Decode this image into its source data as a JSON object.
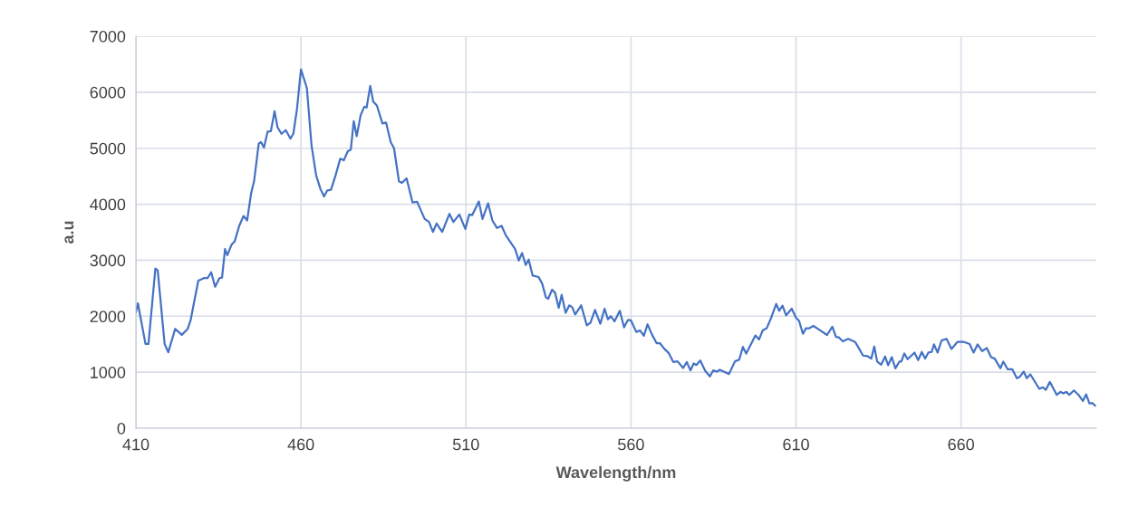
{
  "chart_data": {
    "type": "line",
    "xlabel": "Wavelength/nm",
    "ylabel": "a.u",
    "x": [
      410,
      410.6,
      412.9,
      413.8,
      415.9,
      416.6,
      418.7,
      419.8,
      421.9,
      423.9,
      425.7,
      426.6,
      428.9,
      430.6,
      431.7,
      432.8,
      434.0,
      435.3,
      436.1,
      437.0,
      437.7,
      439.0,
      439.9,
      441.3,
      442.6,
      443.7,
      444.9,
      445.8,
      447.2,
      447.9,
      448.8,
      449.9,
      450.9,
      452.0,
      452.9,
      454.1,
      455.4,
      456.8,
      457.7,
      458.8,
      460.0,
      461.8,
      463.2,
      464.6,
      465.9,
      467.0,
      468.0,
      469.1,
      470.5,
      471.9,
      473.0,
      474.2,
      475.1,
      476.0,
      476.9,
      478.1,
      479.2,
      479.9,
      481.0,
      481.9,
      483.0,
      484.7,
      485.8,
      487.2,
      488.2,
      489.7,
      490.6,
      492.0,
      493.8,
      495.2,
      497.5,
      498.8,
      500.0,
      501.1,
      502.8,
      505.0,
      506.2,
      508.0,
      509.8,
      511.0,
      511.9,
      513.9,
      515.0,
      516.7,
      518.0,
      519.4,
      520.8,
      522.1,
      524.9,
      526.0,
      527.0,
      528.1,
      529.0,
      530.2,
      532.0,
      533.1,
      534.2,
      534.9,
      536.1,
      537.0,
      538.1,
      539.0,
      540.2,
      541.3,
      542.2,
      543.1,
      544.9,
      546.6,
      547.7,
      549.1,
      550.7,
      552.0,
      553.0,
      553.9,
      555.0,
      556.6,
      557.9,
      559.1,
      560.0,
      561.6,
      562.7,
      563.9,
      565.0,
      566.4,
      567.8,
      568.8,
      570.0,
      571.4,
      572.8,
      574.1,
      575.8,
      576.9,
      578.0,
      579.0,
      579.8,
      581.0,
      582.5,
      583.9,
      584.9,
      586.0,
      586.9,
      589.7,
      591.5,
      592.8,
      593.9,
      594.9,
      597.7,
      598.8,
      599.9,
      601.1,
      602.4,
      604.0,
      604.9,
      605.9,
      607.0,
      608.7,
      610.0,
      610.9,
      612.1,
      613.0,
      613.9,
      615.3,
      617.1,
      619.4,
      621.0,
      622.1,
      623.0,
      624.2,
      625.8,
      627.9,
      629.0,
      630.3,
      631.7,
      632.8,
      633.7,
      634.6,
      635.8,
      637.0,
      637.9,
      639.0,
      640.1,
      641.3,
      641.9,
      642.8,
      643.8,
      645.9,
      647.0,
      648.1,
      649.1,
      650.1,
      651.1,
      651.8,
      652.9,
      654.1,
      655.6,
      657.1,
      658.9,
      660.9,
      662.6,
      663.8,
      665.0,
      666.4,
      667.8,
      669.1,
      670.2,
      671.9,
      672.8,
      674.1,
      675.5,
      676.9,
      677.8,
      679.0,
      679.9,
      681.0,
      683.7,
      684.8,
      685.7,
      686.9,
      689.0,
      690.1,
      691.0,
      691.9,
      692.8,
      694.2,
      695.6,
      696.9,
      697.9,
      698.9,
      699.7,
      700.6
    ],
    "series": [
      {
        "color": "#4472c4",
        "values": [
          2070,
          2230,
          1505,
          1505,
          2850,
          2820,
          1505,
          1355,
          1775,
          1667,
          1775,
          1935,
          2635,
          2680,
          2680,
          2785,
          2527,
          2680,
          2690,
          3200,
          3090,
          3280,
          3333,
          3613,
          3790,
          3710,
          4194,
          4409,
          5080,
          5108,
          5011,
          5296,
          5306,
          5661,
          5376,
          5258,
          5323,
          5172,
          5258,
          5699,
          6409,
          6075,
          5054,
          4516,
          4274,
          4140,
          4247,
          4258,
          4516,
          4812,
          4785,
          4946,
          4973,
          5484,
          5215,
          5591,
          5742,
          5726,
          6113,
          5833,
          5763,
          5441,
          5457,
          5108,
          5000,
          4409,
          4382,
          4462,
          4032,
          4043,
          3737,
          3683,
          3505,
          3656,
          3505,
          3828,
          3683,
          3817,
          3559,
          3817,
          3806,
          4048,
          3737,
          4016,
          3710,
          3575,
          3613,
          3441,
          3199,
          2995,
          3129,
          2914,
          3011,
          2726,
          2699,
          2581,
          2339,
          2312,
          2473,
          2419,
          2151,
          2382,
          2059,
          2194,
          2161,
          2032,
          2194,
          1839,
          1882,
          2113,
          1866,
          2134,
          1946,
          2000,
          1909,
          2097,
          1801,
          1935,
          1925,
          1720,
          1747,
          1651,
          1855,
          1667,
          1516,
          1516,
          1425,
          1344,
          1183,
          1194,
          1075,
          1183,
          1032,
          1156,
          1129,
          1210,
          1022,
          925,
          1032,
          1011,
          1043,
          968,
          1194,
          1226,
          1452,
          1333,
          1656,
          1586,
          1747,
          1785,
          1962,
          2220,
          2097,
          2188,
          2016,
          2135,
          1973,
          1919,
          1686,
          1784,
          1784,
          1827,
          1757,
          1665,
          1811,
          1632,
          1622,
          1551,
          1595,
          1541,
          1432,
          1297,
          1286,
          1243,
          1459,
          1189,
          1135,
          1281,
          1124,
          1270,
          1070,
          1189,
          1189,
          1335,
          1232,
          1351,
          1216,
          1362,
          1243,
          1351,
          1362,
          1497,
          1351,
          1568,
          1595,
          1416,
          1541,
          1541,
          1503,
          1351,
          1497,
          1378,
          1432,
          1270,
          1243,
          1070,
          1189,
          1054,
          1054,
          892,
          919,
          1011,
          892,
          962,
          703,
          730,
          686,
          827,
          595,
          649,
          622,
          649,
          595,
          676,
          595,
          486,
          605,
          443,
          449,
          405
        ]
      }
    ],
    "xlim": [
      410,
      701
    ],
    "xticks": [
      410,
      460,
      510,
      560,
      610,
      660
    ],
    "ylim": [
      0,
      7000
    ],
    "yticks": [
      0,
      1000,
      2000,
      3000,
      4000,
      5000,
      6000,
      7000
    ],
    "grid": true,
    "legend": false,
    "marker": "none",
    "line_style": "solid"
  }
}
